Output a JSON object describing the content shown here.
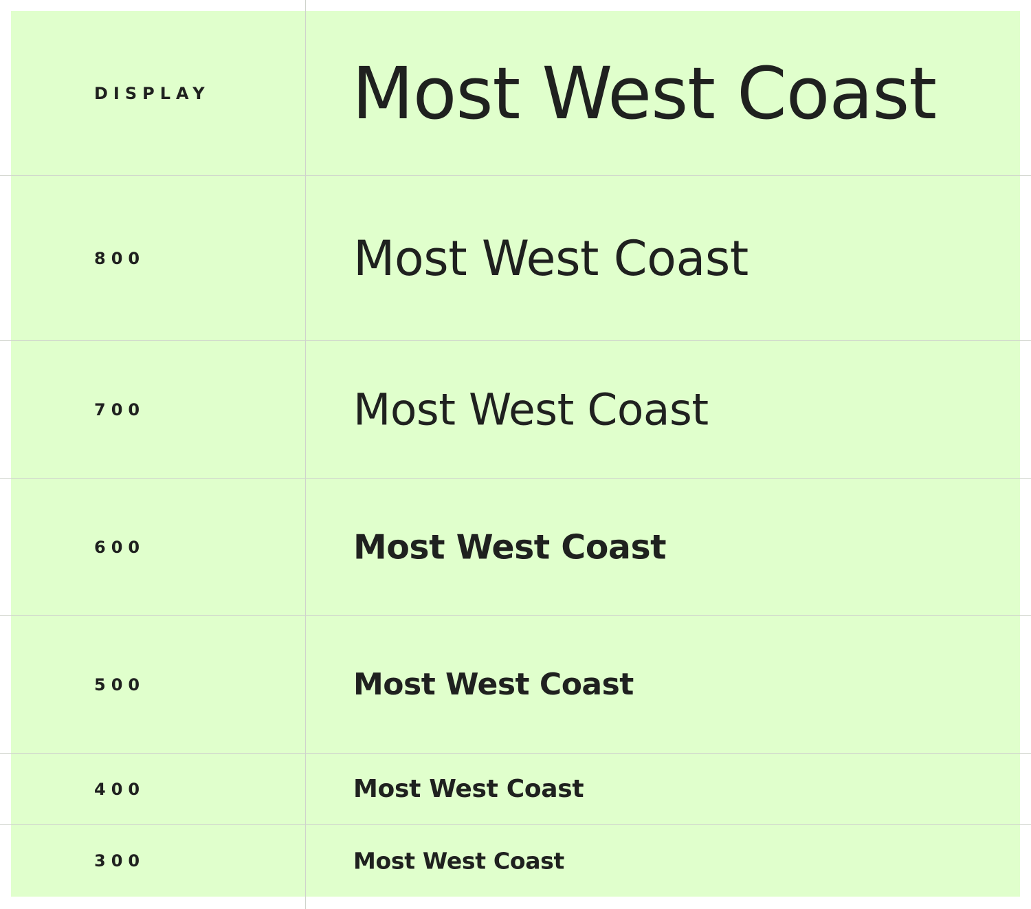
{
  "specimen": {
    "rows": [
      {
        "label": "DISPLAY",
        "sample": "Most West Coast"
      },
      {
        "label": "800",
        "sample": "Most West Coast"
      },
      {
        "label": "700",
        "sample": "Most West Coast"
      },
      {
        "label": "600",
        "sample": "Most West Coast"
      },
      {
        "label": "500",
        "sample": "Most West Coast"
      },
      {
        "label": "400",
        "sample": "Most West Coast"
      },
      {
        "label": "300",
        "sample": "Most West Coast"
      }
    ]
  },
  "colors": {
    "panel_background": "#e0ffcc",
    "grid_line": "#cfd3cc",
    "text": "#1f211f"
  }
}
